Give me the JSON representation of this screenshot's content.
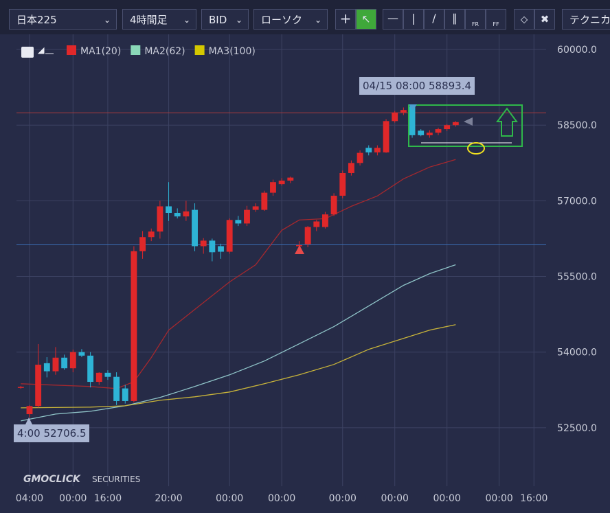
{
  "toolbar": {
    "symbol": "日本225",
    "timeframe": "4時間足",
    "price": "BID",
    "chart_style": "ローソク",
    "technical": "テクニカ",
    "tools": [
      "FR",
      "FF"
    ]
  },
  "watermark": [
    "GMOCLICK",
    "SECURITIES"
  ],
  "chart_data": {
    "type": "candlestick",
    "candles": {
      "up_color": "#e0282a",
      "down_color": "#2eb4d6",
      "open": [
        53300,
        52770,
        52930,
        53780,
        53620,
        53890,
        53680,
        54000,
        53930,
        53410,
        53590,
        53510,
        53280,
        53030,
        56000,
        56280,
        56390,
        56890,
        56760,
        56690,
        56820,
        56100,
        56210,
        56100,
        55990,
        56620,
        56550,
        56820,
        56820,
        57160,
        57330,
        57400,
        56100,
        56140,
        56480,
        56480,
        56730,
        57100,
        57550,
        57750,
        58050,
        57960,
        57960,
        58580,
        58750,
        58870,
        58390,
        58300,
        58350,
        58420,
        58500
      ],
      "high": [
        53330,
        52950,
        54160,
        53900,
        54100,
        53950,
        54050,
        54060,
        54000,
        53600,
        53640,
        53600,
        53350,
        56100,
        56400,
        56450,
        57000,
        57370,
        56850,
        57000,
        56950,
        56260,
        56250,
        56150,
        56650,
        56700,
        56900,
        56950,
        57200,
        57420,
        57450,
        57480,
        56200,
        56500,
        56620,
        56780,
        57150,
        57600,
        57800,
        58000,
        58100,
        58100,
        58620,
        58780,
        58850,
        58893.4,
        58420,
        58400,
        58450,
        58520,
        58580
      ],
      "low": [
        53270,
        52706.5,
        52900,
        53500,
        53550,
        53650,
        53600,
        53900,
        53300,
        53350,
        53450,
        52950,
        52980,
        53000,
        55850,
        56200,
        56250,
        56600,
        56650,
        56600,
        56000,
        55950,
        55800,
        55850,
        55950,
        56500,
        56500,
        56780,
        56800,
        57100,
        57300,
        57350,
        56050,
        56080,
        56400,
        56450,
        56700,
        57050,
        57500,
        57700,
        57900,
        57900,
        57950,
        58550,
        58700,
        58250,
        58280,
        58250,
        58300,
        58380,
        58470
      ],
      "close": [
        53310,
        52930,
        53750,
        53620,
        53890,
        53680,
        54000,
        53930,
        53410,
        53590,
        53510,
        53030,
        53030,
        56000,
        56280,
        56390,
        56890,
        56760,
        56690,
        56790,
        56100,
        56210,
        55980,
        55990,
        56620,
        56550,
        56820,
        56890,
        57160,
        57370,
        57400,
        57460,
        56120,
        56480,
        56590,
        56730,
        57100,
        57550,
        57750,
        57950,
        57960,
        58050,
        58580,
        58750,
        58800,
        58300,
        58300,
        58350,
        58420,
        58500,
        58560
      ]
    },
    "series": [
      {
        "name": "MA1(20)",
        "color": "#e0282a",
        "line_color": "#a5282e",
        "x": [
          0,
          4,
          8,
          11,
          13,
          15,
          17,
          20,
          24,
          27,
          30,
          32,
          35,
          38,
          41,
          44,
          47,
          50
        ],
        "values": [
          53373,
          53345,
          53318,
          53277,
          53414,
          53891,
          54436,
          54845,
          55391,
          55732,
          56414,
          56618,
          56645,
          56891,
          57096,
          57436,
          57668,
          57818
        ]
      },
      {
        "name": "MA2(62)",
        "color": "#8ad8b8",
        "line_color": "#8fc4c8",
        "x": [
          0,
          4,
          8,
          12,
          16,
          20,
          24,
          28,
          32,
          36,
          40,
          44,
          47,
          50
        ],
        "values": [
          52636,
          52772,
          52827,
          52936,
          53100,
          53318,
          53550,
          53823,
          54164,
          54505,
          54914,
          55323,
          55555,
          55732
        ]
      },
      {
        "name": "MA3(100)",
        "color": "#d4c800",
        "line_color": "#c8b43a",
        "x": [
          0,
          8,
          12,
          16,
          20,
          24,
          28,
          32,
          36,
          40,
          44,
          47,
          50
        ],
        "values": [
          52895,
          52909,
          52936,
          53045,
          53114,
          53209,
          53373,
          53550,
          53755,
          54055,
          54273,
          54436,
          54545
        ]
      }
    ],
    "hlines": [
      {
        "value": 58745,
        "color": "#a83a3e"
      },
      {
        "value": 56127,
        "color": "#3a70b8"
      }
    ],
    "annotations": [
      "04/15 08:00 58893.4",
      "4:00 52706.5"
    ],
    "xlim": [
      -0.5,
      60.4
    ],
    "xticks": [
      {
        "value": 1,
        "label": "04:00"
      },
      {
        "value": 6,
        "label": "00:00"
      },
      {
        "value": 10,
        "label": "16:00"
      },
      {
        "value": 17,
        "label": "20:00"
      },
      {
        "value": 24,
        "label": "00:00"
      },
      {
        "value": 30,
        "label": "00:00"
      },
      {
        "value": 37,
        "label": "00:00"
      },
      {
        "value": 43,
        "label": "00:00"
      },
      {
        "value": 49,
        "label": "00:00"
      },
      {
        "value": 55,
        "label": "00:00"
      },
      {
        "value": 59,
        "label": "16:00"
      }
    ],
    "ylim": [
      51450,
      60300
    ],
    "yticks": [
      {
        "value": 52500,
        "label": "52500.0"
      },
      {
        "value": 54000,
        "label": "54000.0"
      },
      {
        "value": 55500,
        "label": "55500.0"
      },
      {
        "value": 57000,
        "label": "57000.0"
      },
      {
        "value": 58500,
        "label": "58500.0"
      },
      {
        "value": 60000,
        "label": "60000.0"
      }
    ],
    "grid": true
  }
}
